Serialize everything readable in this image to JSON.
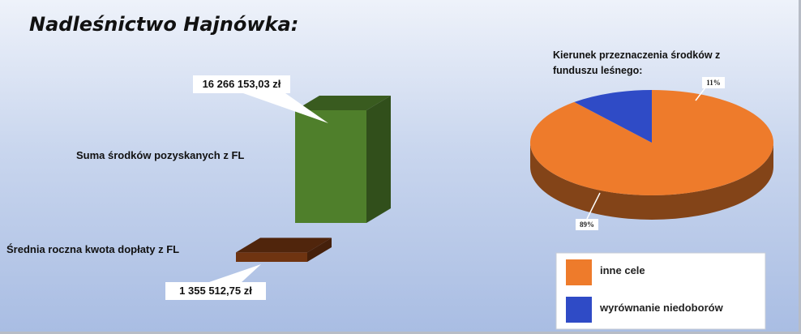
{
  "title": "Nadleśnictwo Hajnówka:",
  "chart_data": [
    {
      "type": "bar",
      "categories": [
        "Suma środków pozyskanych z FL",
        "Średnia roczna kwota dopłaty z FL"
      ],
      "values": [
        16266153.03,
        1355512.75
      ],
      "data_labels": [
        "16 266 153,03 zł",
        "1 355 512,75 zł"
      ],
      "colors": [
        "#4f7f2b",
        "#6f3411"
      ]
    },
    {
      "type": "pie",
      "title": "Kierunek przeznaczenia środków z funduszu leśnego:",
      "title_lines": [
        "Kierunek przeznaczenia środków z",
        "funduszu leśnego:"
      ],
      "categories": [
        "inne cele",
        "wyrównanie niedoborów"
      ],
      "values": [
        89,
        11
      ],
      "data_labels": [
        "89%",
        "11%"
      ],
      "colors": [
        "#ee7b2b",
        "#2f4bc6"
      ],
      "legend_position": "bottom-right"
    }
  ]
}
